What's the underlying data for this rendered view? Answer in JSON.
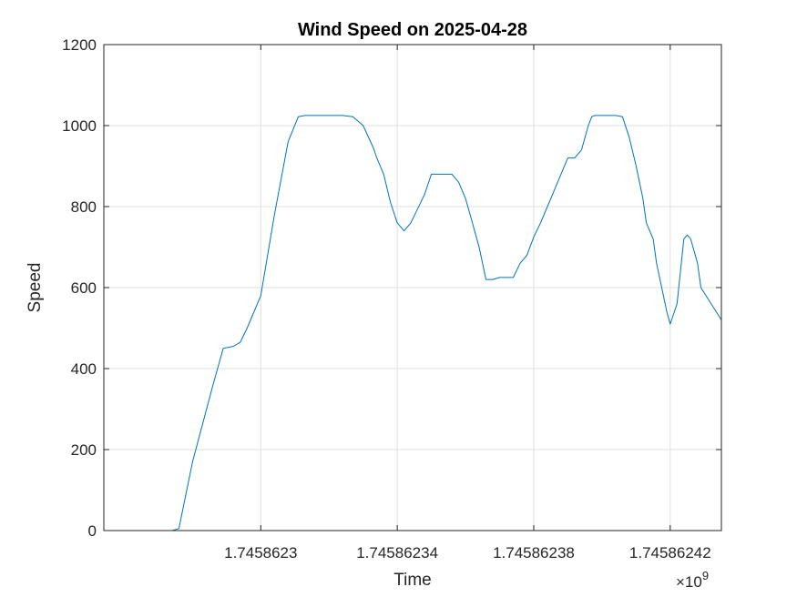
{
  "chart_data": {
    "type": "line",
    "title": "Wind Speed on 2025-04-28",
    "xlabel": "Time",
    "ylabel": "Speed",
    "x_exponent_label": "×10",
    "x_exponent_power": "9",
    "xlim": [
      1745862254,
      1745862435
    ],
    "ylim": [
      0,
      1200
    ],
    "x_ticks": [
      1745862300,
      1745862340,
      1745862380,
      1745862420
    ],
    "x_tick_labels": [
      "1.7458623",
      "1.74586234",
      "1.74586238",
      "1.74586242"
    ],
    "y_ticks": [
      0,
      200,
      400,
      600,
      800,
      1000,
      1200
    ],
    "y_tick_labels": [
      "0",
      "200",
      "400",
      "600",
      "800",
      "1000",
      "1200"
    ],
    "grid": true,
    "color": "#0072BD",
    "series": [
      {
        "x": [
          1745862250,
          1745862270,
          1745862274,
          1745862276,
          1745862280,
          1745862286,
          1745862289,
          1745862292,
          1745862294,
          1745862296,
          1745862300,
          1745862304,
          1745862308,
          1745862311,
          1745862313,
          1745862316,
          1745862320,
          1745862324,
          1745862327,
          1745862330,
          1745862333,
          1745862334,
          1745862336,
          1745862338,
          1745862340,
          1745862342,
          1745862344,
          1745862348,
          1745862350,
          1745862356,
          1745862358,
          1745862360,
          1745862362,
          1745862364,
          1745862366,
          1745862368,
          1745862370,
          1745862374,
          1745862376,
          1745862378,
          1745862380,
          1745862382,
          1745862384,
          1745862386,
          1745862388,
          1745862390,
          1745862392,
          1745862394,
          1745862396,
          1745862397,
          1745862398,
          1745862400,
          1745862402,
          1745862404,
          1745862406,
          1745862408,
          1745862410,
          1745862412,
          1745862413,
          1745862414,
          1745862415,
          1745862416,
          1745862417,
          1745862419,
          1745862420,
          1745862422,
          1745862424,
          1745862425,
          1745862426,
          1745862428,
          1745862429,
          1745862436
        ],
        "y": [
          0,
          0,
          0,
          5,
          170,
          360,
          450,
          455,
          465,
          500,
          580,
          780,
          960,
          1022,
          1025,
          1025,
          1025,
          1025,
          1022,
          1000,
          945,
          920,
          880,
          810,
          760,
          740,
          760,
          830,
          880,
          880,
          860,
          820,
          760,
          700,
          620,
          620,
          625,
          625,
          660,
          680,
          725,
          760,
          800,
          840,
          880,
          920,
          920,
          940,
          1000,
          1022,
          1025,
          1025,
          1025,
          1025,
          1022,
          970,
          900,
          820,
          760,
          740,
          720,
          660,
          620,
          540,
          510,
          560,
          720,
          730,
          720,
          660,
          600,
          520
        ]
      }
    ]
  }
}
